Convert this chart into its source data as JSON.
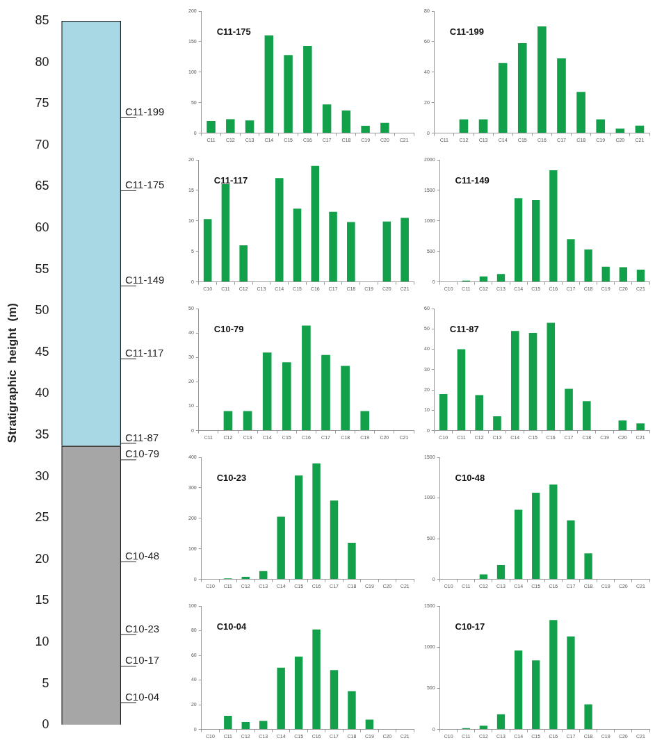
{
  "chart_data": [
    {
      "type": "bar",
      "stacked": true,
      "ylabel": "Stratigraphic  height  (m)",
      "categories": [
        null
      ],
      "series": [
        {
          "color": "#a6a6a6",
          "values": [
            33.7
          ]
        },
        {
          "color": "#a8d8e3",
          "values": [
            51.3
          ]
        }
      ],
      "ylim": [
        0,
        85
      ],
      "yticks": [
        0,
        5,
        10,
        15,
        20,
        25,
        30,
        35,
        40,
        45,
        50,
        55,
        60,
        65,
        70,
        75,
        80,
        85
      ],
      "ref_lines": [
        {
          "axis": "y",
          "value": 73.3,
          "label": "C11-199"
        },
        {
          "axis": "y",
          "value": 64.5,
          "label": "C11-175"
        },
        {
          "axis": "y",
          "value": 53,
          "label": "C11-149"
        },
        {
          "axis": "y",
          "value": 44.2,
          "label": "C11-117"
        },
        {
          "axis": "y",
          "value": 34,
          "label": "C11-87"
        },
        {
          "axis": "y",
          "value": 32,
          "label": "C10-79"
        },
        {
          "axis": "y",
          "value": 19.7,
          "label": "C10-48"
        },
        {
          "axis": "y",
          "value": 10.9,
          "label": "C10-23"
        },
        {
          "axis": "y",
          "value": 7.1,
          "label": "C10-17"
        },
        {
          "axis": "y",
          "value": 2.7,
          "label": "C10-04"
        }
      ]
    },
    {
      "type": "bar",
      "title": "C11-175",
      "categories": [
        "C11",
        "C12",
        "C13",
        "C14",
        "C15",
        "C16",
        "C17",
        "C18",
        "C19",
        "C20",
        "C21"
      ],
      "values": [
        20,
        23,
        21,
        160,
        128,
        143,
        47,
        37,
        12,
        17,
        0
      ],
      "color": "#13a04a",
      "ylim": [
        0,
        200
      ],
      "yticks": [
        0,
        50,
        100,
        150,
        200
      ]
    },
    {
      "type": "bar",
      "title": "C11-199",
      "categories": [
        "C11",
        "C12",
        "C13",
        "C14",
        "C15",
        "C16",
        "C17",
        "C18",
        "C19",
        "C20",
        "C21"
      ],
      "values": [
        0,
        9,
        9,
        46,
        59,
        70,
        49,
        27,
        9,
        3,
        5
      ],
      "color": "#13a04a",
      "ylim": [
        0,
        80
      ],
      "yticks": [
        0,
        20,
        40,
        60,
        80
      ]
    },
    {
      "type": "bar",
      "title": "C11-117",
      "categories": [
        "C10",
        "C11",
        "C12",
        "C13",
        "C14",
        "C15",
        "C16",
        "C17",
        "C18",
        "C19",
        "C20",
        "C21"
      ],
      "values": [
        10.3,
        16,
        6,
        0,
        17,
        12,
        19,
        11.5,
        9.8,
        0,
        9.9,
        10.5
      ],
      "color": "#13a04a",
      "ylim": [
        0,
        20
      ],
      "yticks": [
        0,
        5,
        10,
        15,
        20
      ]
    },
    {
      "type": "bar",
      "title": "C11-149",
      "categories": [
        "C10",
        "C11",
        "C12",
        "C13",
        "C14",
        "C15",
        "C16",
        "C17",
        "C18",
        "C19",
        "C20",
        "C21"
      ],
      "values": [
        0,
        20,
        90,
        130,
        1370,
        1340,
        1830,
        700,
        530,
        250,
        240,
        200
      ],
      "color": "#13a04a",
      "ylim": [
        0,
        2000
      ],
      "yticks": [
        0,
        500,
        1000,
        1500,
        2000
      ]
    },
    {
      "type": "bar",
      "title": "C10-79",
      "categories": [
        "C11",
        "C12",
        "C13",
        "C14",
        "C15",
        "C16",
        "C17",
        "C18",
        "C19",
        "C20",
        "C21"
      ],
      "values": [
        0,
        8,
        8,
        32,
        28,
        43,
        31,
        26.5,
        8,
        0,
        0
      ],
      "color": "#13a04a",
      "ylim": [
        0,
        50
      ],
      "yticks": [
        0,
        10,
        20,
        30,
        40,
        50
      ]
    },
    {
      "type": "bar",
      "title": "C11-87",
      "categories": [
        "C10",
        "C11",
        "C12",
        "C13",
        "C14",
        "C15",
        "C16",
        "C17",
        "C18",
        "C19",
        "C20",
        "C21"
      ],
      "values": [
        18,
        40,
        17.5,
        7,
        49,
        48,
        53,
        20.5,
        14.5,
        0,
        5,
        3.5
      ],
      "color": "#13a04a",
      "ylim": [
        0,
        60
      ],
      "yticks": [
        0,
        10,
        20,
        30,
        40,
        50,
        60
      ]
    },
    {
      "type": "bar",
      "title": "C10-23",
      "categories": [
        "C10",
        "C11",
        "C12",
        "C13",
        "C14",
        "C15",
        "C16",
        "C17",
        "C18",
        "C19",
        "C20",
        "C21"
      ],
      "values": [
        0,
        3,
        8,
        27,
        205,
        340,
        380,
        258,
        120,
        0,
        0,
        0
      ],
      "color": "#13a04a",
      "ylim": [
        0,
        400
      ],
      "yticks": [
        0,
        100,
        200,
        300,
        400
      ]
    },
    {
      "type": "bar",
      "title": "C10-48",
      "categories": [
        "C10",
        "C11",
        "C12",
        "C13",
        "C14",
        "C15",
        "C16",
        "C17",
        "C18",
        "C19",
        "C20",
        "C21"
      ],
      "values": [
        0,
        0,
        60,
        175,
        855,
        1065,
        1165,
        725,
        320,
        0,
        0,
        0
      ],
      "color": "#13a04a",
      "ylim": [
        0,
        1500
      ],
      "yticks": [
        0,
        500,
        1000,
        1500
      ]
    },
    {
      "type": "bar",
      "title": "C10-04",
      "categories": [
        "C10",
        "C11",
        "C12",
        "C13",
        "C14",
        "C15",
        "C16",
        "C17",
        "C18",
        "C19",
        "C20",
        "C21"
      ],
      "values": [
        0,
        11,
        6,
        7,
        50,
        59,
        81,
        48,
        31,
        8,
        0,
        0
      ],
      "color": "#13a04a",
      "ylim": [
        0,
        100
      ],
      "yticks": [
        0,
        20,
        40,
        60,
        80,
        100
      ]
    },
    {
      "type": "bar",
      "title": "C10-17",
      "categories": [
        "C10",
        "C11",
        "C12",
        "C13",
        "C14",
        "C15",
        "C16",
        "C17",
        "C18",
        "C19",
        "C20",
        "C21"
      ],
      "values": [
        0,
        15,
        45,
        185,
        960,
        840,
        1330,
        1130,
        305,
        0,
        0,
        0
      ],
      "color": "#13a04a",
      "ylim": [
        0,
        1500
      ],
      "yticks": [
        0,
        500,
        1000,
        1500
      ]
    }
  ]
}
